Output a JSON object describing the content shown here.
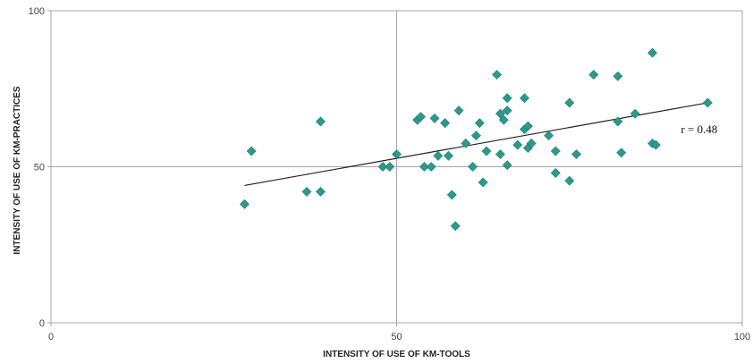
{
  "chart_data": {
    "type": "scatter",
    "xlabel": "INTENSITY OF USE OF KM-TOOLS",
    "ylabel": "INTENSITY OF USE OF KM-PRACTICES",
    "xlim": [
      0,
      100
    ],
    "ylim": [
      0,
      100
    ],
    "x_ticks": [
      "0",
      "50",
      "100"
    ],
    "y_ticks": [
      "0",
      "50",
      "100"
    ],
    "grid": true,
    "marker_color": "#2a9a8c",
    "trendline": {
      "x": [
        28,
        95
      ],
      "y": [
        44,
        70.5
      ]
    },
    "annotation": "r = 0.48",
    "points": [
      {
        "x": 28,
        "y": 38
      },
      {
        "x": 29,
        "y": 55
      },
      {
        "x": 37,
        "y": 42
      },
      {
        "x": 39,
        "y": 64.5
      },
      {
        "x": 39,
        "y": 42
      },
      {
        "x": 48,
        "y": 50
      },
      {
        "x": 49,
        "y": 50
      },
      {
        "x": 50,
        "y": 54
      },
      {
        "x": 53,
        "y": 65
      },
      {
        "x": 53.5,
        "y": 66
      },
      {
        "x": 54,
        "y": 50
      },
      {
        "x": 55,
        "y": 50
      },
      {
        "x": 55.5,
        "y": 65.5
      },
      {
        "x": 56,
        "y": 53.5
      },
      {
        "x": 57,
        "y": 64
      },
      {
        "x": 57.5,
        "y": 53.5
      },
      {
        "x": 58,
        "y": 41
      },
      {
        "x": 58.5,
        "y": 31
      },
      {
        "x": 59,
        "y": 68
      },
      {
        "x": 60,
        "y": 57.5
      },
      {
        "x": 61,
        "y": 50
      },
      {
        "x": 61.5,
        "y": 60
      },
      {
        "x": 62,
        "y": 64
      },
      {
        "x": 62.5,
        "y": 45
      },
      {
        "x": 63,
        "y": 55
      },
      {
        "x": 64.5,
        "y": 79.5
      },
      {
        "x": 65,
        "y": 54
      },
      {
        "x": 65,
        "y": 67
      },
      {
        "x": 65.5,
        "y": 65
      },
      {
        "x": 66,
        "y": 72
      },
      {
        "x": 66,
        "y": 68
      },
      {
        "x": 66,
        "y": 50.5
      },
      {
        "x": 67.5,
        "y": 57
      },
      {
        "x": 68.5,
        "y": 72
      },
      {
        "x": 68.5,
        "y": 62
      },
      {
        "x": 69,
        "y": 63
      },
      {
        "x": 69,
        "y": 56
      },
      {
        "x": 69.5,
        "y": 57.5
      },
      {
        "x": 72,
        "y": 60
      },
      {
        "x": 73,
        "y": 48
      },
      {
        "x": 73,
        "y": 55
      },
      {
        "x": 75,
        "y": 70.5
      },
      {
        "x": 75,
        "y": 45.5
      },
      {
        "x": 76,
        "y": 54
      },
      {
        "x": 78.5,
        "y": 79.5
      },
      {
        "x": 82,
        "y": 79
      },
      {
        "x": 82,
        "y": 64.5
      },
      {
        "x": 82.5,
        "y": 54.5
      },
      {
        "x": 84.5,
        "y": 67
      },
      {
        "x": 87,
        "y": 86.5
      },
      {
        "x": 87,
        "y": 57.5
      },
      {
        "x": 87.5,
        "y": 57
      },
      {
        "x": 95,
        "y": 70.5
      }
    ]
  }
}
